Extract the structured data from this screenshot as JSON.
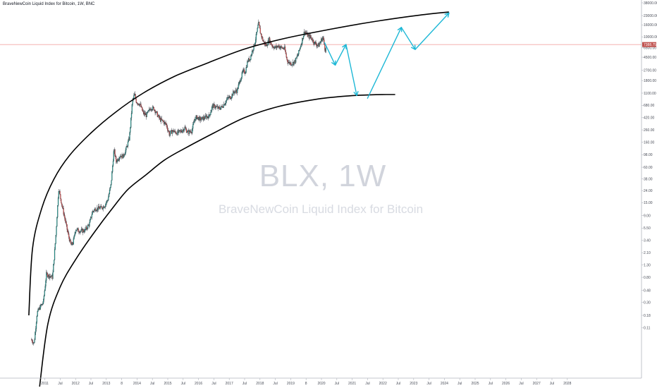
{
  "header": {
    "symbol_line": "BraveNewCoin Liquid Index for Bitcoin, 1W, BNC"
  },
  "watermark": {
    "symbol": "BLX, 1W",
    "description": "BraveNewCoin Liquid Index for Bitcoin"
  },
  "colors": {
    "up": "#26a69a",
    "down": "#ef5350",
    "candle_border": "#131722",
    "arrow": "#1eb8d6",
    "curve": "#000000",
    "price_line": "#f2a7a4",
    "price_tag": "#c0504d"
  },
  "chart_data": {
    "type": "candlestick",
    "scale": "log",
    "current_price": 7388.75,
    "current_price_label": "7388.75",
    "y_ticks": [
      {
        "value": 38000,
        "label": "38000.00"
      },
      {
        "value": 23000,
        "label": "23000.00"
      },
      {
        "value": 16000,
        "label": "16000.00"
      },
      {
        "value": 10000,
        "label": "10000.00"
      },
      {
        "value": 6500,
        "label": "6500.00"
      },
      {
        "value": 4500,
        "label": "4500.00"
      },
      {
        "value": 2700,
        "label": "2700.00"
      },
      {
        "value": 1800,
        "label": "1800.00"
      },
      {
        "value": 1100,
        "label": "1100.00"
      },
      {
        "value": 680,
        "label": "680.00"
      },
      {
        "value": 420,
        "label": "420.00"
      },
      {
        "value": 260,
        "label": "260.00"
      },
      {
        "value": 160,
        "label": "160.00"
      },
      {
        "value": 98,
        "label": "98.00"
      },
      {
        "value": 60,
        "label": "60.00"
      },
      {
        "value": 38,
        "label": "38.00"
      },
      {
        "value": 24,
        "label": "24.00"
      },
      {
        "value": 15,
        "label": "15.00"
      },
      {
        "value": 9,
        "label": "9.00"
      },
      {
        "value": 5.5,
        "label": "5.50"
      },
      {
        "value": 3.4,
        "label": "3.40"
      },
      {
        "value": 2.1,
        "label": "2.10"
      },
      {
        "value": 1.3,
        "label": "1.30"
      },
      {
        "value": 0.8,
        "label": "0.80"
      },
      {
        "value": 0.48,
        "label": "0.48"
      },
      {
        "value": 0.3,
        "label": "0.30"
      },
      {
        "value": 0.18,
        "label": "0.18"
      },
      {
        "value": 0.11,
        "label": "0.11"
      }
    ],
    "x_ticks": [
      {
        "t": 2011.0,
        "label": "2011"
      },
      {
        "t": 2011.5,
        "label": "Jul"
      },
      {
        "t": 2012.0,
        "label": "2012"
      },
      {
        "t": 2012.5,
        "label": "Jul"
      },
      {
        "t": 2013.0,
        "label": "2013"
      },
      {
        "t": 2013.5,
        "label": "8"
      },
      {
        "t": 2014.0,
        "label": "2014"
      },
      {
        "t": 2014.5,
        "label": "Jul"
      },
      {
        "t": 2015.0,
        "label": "2015"
      },
      {
        "t": 2015.5,
        "label": "Jul"
      },
      {
        "t": 2016.0,
        "label": "2016"
      },
      {
        "t": 2016.5,
        "label": "Jul"
      },
      {
        "t": 2017.0,
        "label": "2017"
      },
      {
        "t": 2017.5,
        "label": "Jul"
      },
      {
        "t": 2018.0,
        "label": "2018"
      },
      {
        "t": 2018.5,
        "label": "Jul"
      },
      {
        "t": 2019.0,
        "label": "2019"
      },
      {
        "t": 2019.5,
        "label": "8"
      },
      {
        "t": 2020.0,
        "label": "2020"
      },
      {
        "t": 2020.5,
        "label": "Jul"
      },
      {
        "t": 2021.0,
        "label": "2021"
      },
      {
        "t": 2021.5,
        "label": "Jul"
      },
      {
        "t": 2022.0,
        "label": "2022"
      },
      {
        "t": 2022.5,
        "label": "Jul"
      },
      {
        "t": 2023.0,
        "label": "2023"
      },
      {
        "t": 2023.5,
        "label": "Jul"
      },
      {
        "t": 2024.0,
        "label": "2024"
      },
      {
        "t": 2024.5,
        "label": "Jul"
      },
      {
        "t": 2025.0,
        "label": "2025"
      },
      {
        "t": 2025.5,
        "label": "Jul"
      },
      {
        "t": 2026.0,
        "label": "2026"
      },
      {
        "t": 2026.5,
        "label": "Jul"
      },
      {
        "t": 2027.0,
        "label": "2027"
      },
      {
        "t": 2027.5,
        "label": "Jul"
      },
      {
        "t": 2028.0,
        "label": "2028"
      }
    ],
    "price_path": [
      [
        2010.55,
        0.07
      ],
      [
        2010.65,
        0.06
      ],
      [
        2010.75,
        0.2
      ],
      [
        2010.85,
        0.25
      ],
      [
        2010.95,
        0.3
      ],
      [
        2011.05,
        0.9
      ],
      [
        2011.15,
        0.85
      ],
      [
        2011.25,
        0.8
      ],
      [
        2011.35,
        3.6
      ],
      [
        2011.45,
        26
      ],
      [
        2011.55,
        14
      ],
      [
        2011.65,
        8
      ],
      [
        2011.75,
        4.5
      ],
      [
        2011.85,
        2.8
      ],
      [
        2011.92,
        3.1
      ],
      [
        2012.0,
        5.3
      ],
      [
        2012.15,
        4.9
      ],
      [
        2012.3,
        5.0
      ],
      [
        2012.45,
        6.5
      ],
      [
        2012.55,
        10.5
      ],
      [
        2012.65,
        11.8
      ],
      [
        2012.75,
        12.0
      ],
      [
        2012.85,
        12.3
      ],
      [
        2012.95,
        13.4
      ],
      [
        2013.05,
        17
      ],
      [
        2013.15,
        30
      ],
      [
        2013.25,
        120
      ],
      [
        2013.32,
        75
      ],
      [
        2013.45,
        95
      ],
      [
        2013.55,
        92
      ],
      [
        2013.65,
        125
      ],
      [
        2013.75,
        190
      ],
      [
        2013.85,
        800
      ],
      [
        2013.92,
        1050
      ],
      [
        2013.98,
        780
      ],
      [
        2014.1,
        700
      ],
      [
        2014.2,
        500
      ],
      [
        2014.3,
        460
      ],
      [
        2014.45,
        620
      ],
      [
        2014.55,
        600
      ],
      [
        2014.65,
        480
      ],
      [
        2014.75,
        390
      ],
      [
        2014.85,
        360
      ],
      [
        2014.95,
        320
      ],
      [
        2015.05,
        220
      ],
      [
        2015.15,
        250
      ],
      [
        2015.3,
        230
      ],
      [
        2015.45,
        250
      ],
      [
        2015.55,
        280
      ],
      [
        2015.65,
        235
      ],
      [
        2015.78,
        250
      ],
      [
        2015.88,
        400
      ],
      [
        2015.95,
        430
      ],
      [
        2016.05,
        390
      ],
      [
        2016.2,
        420
      ],
      [
        2016.35,
        450
      ],
      [
        2016.45,
        660
      ],
      [
        2016.55,
        650
      ],
      [
        2016.65,
        600
      ],
      [
        2016.75,
        630
      ],
      [
        2016.85,
        740
      ],
      [
        2016.95,
        900
      ],
      [
        2017.05,
        950
      ],
      [
        2017.15,
        1150
      ],
      [
        2017.25,
        1200
      ],
      [
        2017.35,
        1800
      ],
      [
        2017.45,
        2600
      ],
      [
        2017.52,
        2500
      ],
      [
        2017.6,
        3900
      ],
      [
        2017.68,
        4300
      ],
      [
        2017.75,
        5800
      ],
      [
        2017.82,
        7500
      ],
      [
        2017.88,
        10500
      ],
      [
        2017.95,
        17000
      ],
      [
        2018.02,
        11500
      ],
      [
        2018.1,
        8500
      ],
      [
        2018.2,
        7000
      ],
      [
        2018.3,
        9000
      ],
      [
        2018.4,
        7000
      ],
      [
        2018.5,
        6500
      ],
      [
        2018.6,
        7000
      ],
      [
        2018.7,
        6500
      ],
      [
        2018.8,
        6300
      ],
      [
        2018.88,
        4000
      ],
      [
        2018.95,
        3600
      ],
      [
        2019.05,
        3500
      ],
      [
        2019.15,
        3900
      ],
      [
        2019.25,
        5200
      ],
      [
        2019.35,
        8000
      ],
      [
        2019.45,
        12500
      ],
      [
        2019.55,
        10500
      ],
      [
        2019.65,
        9800
      ],
      [
        2019.75,
        8200
      ],
      [
        2019.85,
        7300
      ],
      [
        2019.92,
        7200
      ],
      [
        2020.0,
        9000
      ],
      [
        2020.05,
        9700
      ],
      [
        2020.12,
        6000
      ],
      [
        2020.15,
        6300
      ]
    ],
    "annotations": {
      "upper_curve": [
        [
          2010.48,
          0.18
        ],
        [
          2010.6,
          2.5
        ],
        [
          2010.9,
          12
        ],
        [
          2011.3,
          38
        ],
        [
          2011.8,
          95
        ],
        [
          2012.5,
          230
        ],
        [
          2013.3,
          520
        ],
        [
          2014.2,
          1100
        ],
        [
          2015.2,
          2100
        ],
        [
          2016.3,
          3600
        ],
        [
          2017.5,
          6200
        ],
        [
          2018.8,
          9400
        ],
        [
          2020.3,
          13500
        ],
        [
          2021.8,
          18500
        ],
        [
          2023.2,
          23500
        ],
        [
          2024.15,
          26500
        ]
      ],
      "lower_curve": [
        [
          2010.83,
          0.011
        ],
        [
          2011.1,
          0.13
        ],
        [
          2011.5,
          0.55
        ],
        [
          2012.0,
          1.6
        ],
        [
          2012.6,
          4.6
        ],
        [
          2013.2,
          12
        ],
        [
          2013.7,
          25
        ],
        [
          2014.3,
          45
        ],
        [
          2014.9,
          80
        ],
        [
          2015.6,
          130
        ],
        [
          2016.5,
          230
        ],
        [
          2017.5,
          420
        ],
        [
          2018.6,
          650
        ],
        [
          2019.8,
          860
        ],
        [
          2020.8,
          980
        ],
        [
          2021.6,
          1030
        ],
        [
          2022.1,
          1040
        ],
        [
          2022.4,
          1040
        ]
      ],
      "projection_arrows": [
        [
          [
            2020.1,
            8000
          ],
          [
            2020.45,
            3300
          ]
        ],
        [
          [
            2020.45,
            3300
          ],
          [
            2020.8,
            7400
          ]
        ],
        [
          [
            2020.8,
            7400
          ],
          [
            2021.15,
            1000
          ]
        ],
        [
          [
            2021.5,
            900
          ],
          [
            2022.6,
            14500
          ]
        ],
        [
          [
            2022.6,
            14500
          ],
          [
            2023.05,
            6100
          ]
        ],
        [
          [
            2023.05,
            6100
          ],
          [
            2024.15,
            25500
          ]
        ]
      ]
    }
  }
}
